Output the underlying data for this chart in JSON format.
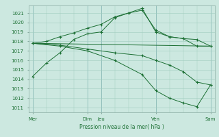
{
  "xlabel": "Pression niveau de la mer( hPa )",
  "ylim": [
    1010.5,
    1021.8
  ],
  "yticks": [
    1011,
    1012,
    1013,
    1014,
    1015,
    1016,
    1017,
    1018,
    1019,
    1020,
    1021
  ],
  "bg_color": "#cce8e0",
  "grid_color": "#a0ccbe",
  "line_color": "#1a6e32",
  "xtick_major_positions": [
    0,
    4,
    5,
    9,
    13
  ],
  "xtick_major_labels": [
    "Mer",
    "Dim",
    "Jeu",
    "Ven",
    "Sam"
  ],
  "lines": [
    {
      "x": [
        0,
        1,
        2,
        3,
        4,
        5,
        6,
        7,
        8,
        9,
        10,
        11,
        12,
        13
      ],
      "y": [
        1014.3,
        1015.7,
        1016.8,
        1018.2,
        1018.8,
        1019.0,
        1020.5,
        1021.0,
        1021.3,
        1019.2,
        1018.5,
        1018.3,
        1017.5,
        1017.5
      ],
      "marker": true
    },
    {
      "x": [
        0,
        1,
        2,
        3,
        4,
        5,
        6,
        7,
        8,
        9,
        10,
        11,
        12,
        13
      ],
      "y": [
        1017.8,
        1018.0,
        1018.5,
        1018.9,
        1019.4,
        1019.8,
        1020.6,
        1021.0,
        1021.5,
        1019.0,
        1018.5,
        1018.3,
        1018.2,
        1017.5
      ],
      "marker": true
    },
    {
      "x": [
        0,
        13
      ],
      "y": [
        1017.8,
        1017.5
      ],
      "marker": false
    },
    {
      "x": [
        0,
        2,
        4,
        6,
        8,
        9,
        10,
        11,
        12,
        13
      ],
      "y": [
        1017.8,
        1017.6,
        1017.2,
        1016.8,
        1016.5,
        1016.0,
        1015.5,
        1014.8,
        1013.7,
        1013.4
      ],
      "marker": true
    },
    {
      "x": [
        0,
        2,
        4,
        6,
        8,
        9,
        10,
        11,
        12,
        13
      ],
      "y": [
        1017.8,
        1017.5,
        1017.0,
        1016.0,
        1014.5,
        1012.8,
        1012.0,
        1011.5,
        1011.1,
        1013.4
      ],
      "marker": true
    }
  ]
}
